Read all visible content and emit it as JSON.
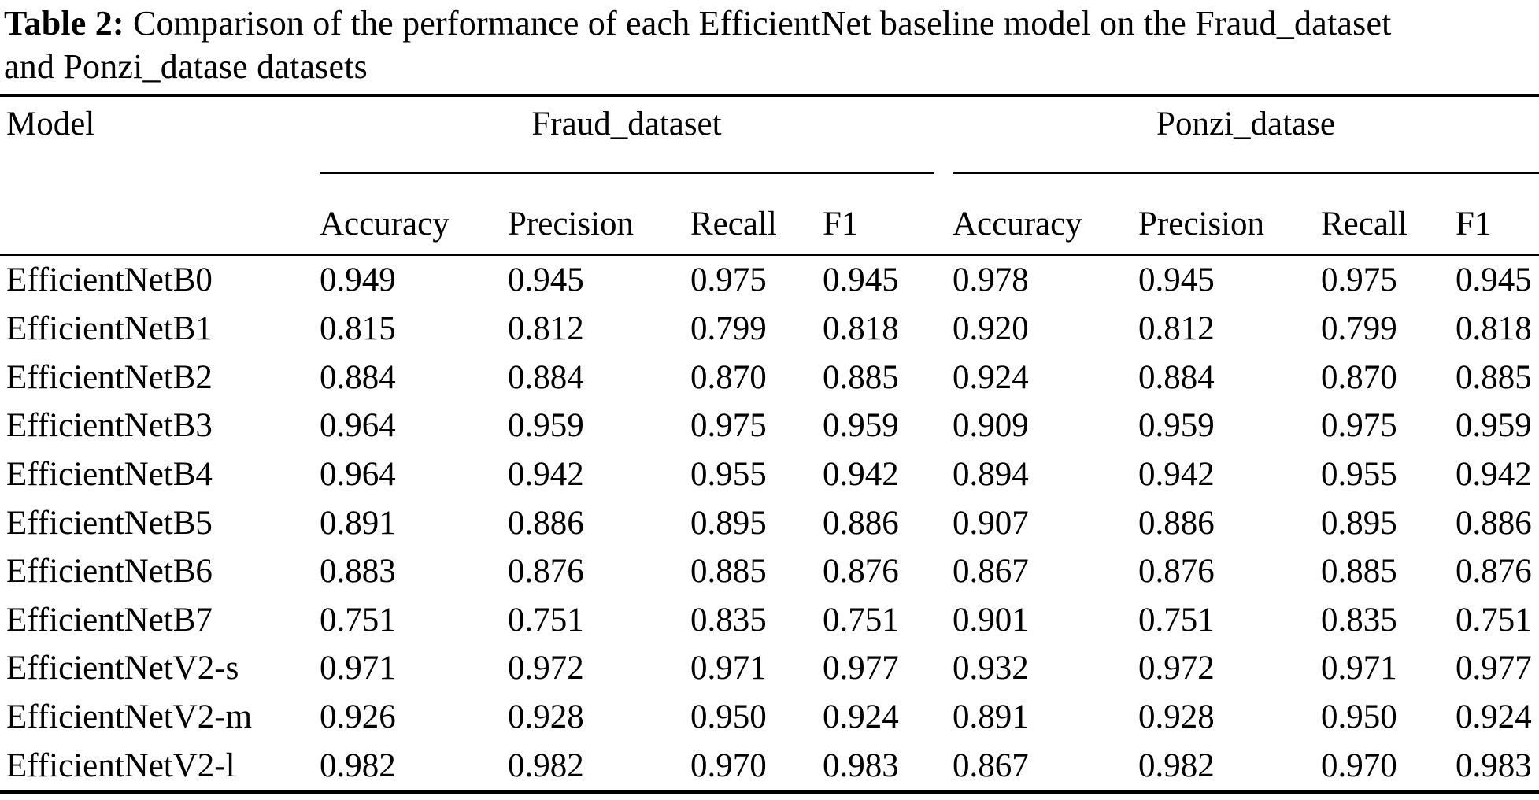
{
  "caption": {
    "label": "Table 2:",
    "line1": "Comparison of the performance of each EfficientNet baseline model on the Fraud_dataset",
    "line2": "and Ponzi_datase datasets"
  },
  "table": {
    "model_header": "Model",
    "groups": [
      {
        "label": "Fraud_dataset",
        "columns": [
          "Accuracy",
          "Precision",
          "Recall",
          "F1"
        ]
      },
      {
        "label": "Ponzi_datase",
        "columns": [
          "Accuracy",
          "Precision",
          "Recall",
          "F1"
        ]
      }
    ],
    "rows": [
      {
        "model": "EfficientNetB0",
        "fraud": [
          "0.949",
          "0.945",
          "0.975",
          "0.945"
        ],
        "ponzi": [
          "0.978",
          "0.945",
          "0.975",
          "0.945"
        ]
      },
      {
        "model": "EfficientNetB1",
        "fraud": [
          "0.815",
          "0.812",
          "0.799",
          "0.818"
        ],
        "ponzi": [
          "0.920",
          "0.812",
          "0.799",
          "0.818"
        ]
      },
      {
        "model": "EfficientNetB2",
        "fraud": [
          "0.884",
          "0.884",
          "0.870",
          "0.885"
        ],
        "ponzi": [
          "0.924",
          "0.884",
          "0.870",
          "0.885"
        ]
      },
      {
        "model": "EfficientNetB3",
        "fraud": [
          "0.964",
          "0.959",
          "0.975",
          "0.959"
        ],
        "ponzi": [
          "0.909",
          "0.959",
          "0.975",
          "0.959"
        ]
      },
      {
        "model": "EfficientNetB4",
        "fraud": [
          "0.964",
          "0.942",
          "0.955",
          "0.942"
        ],
        "ponzi": [
          "0.894",
          "0.942",
          "0.955",
          "0.942"
        ]
      },
      {
        "model": "EfficientNetB5",
        "fraud": [
          "0.891",
          "0.886",
          "0.895",
          "0.886"
        ],
        "ponzi": [
          "0.907",
          "0.886",
          "0.895",
          "0.886"
        ]
      },
      {
        "model": "EfficientNetB6",
        "fraud": [
          "0.883",
          "0.876",
          "0.885",
          "0.876"
        ],
        "ponzi": [
          "0.867",
          "0.876",
          "0.885",
          "0.876"
        ]
      },
      {
        "model": "EfficientNetB7",
        "fraud": [
          "0.751",
          "0.751",
          "0.835",
          "0.751"
        ],
        "ponzi": [
          "0.901",
          "0.751",
          "0.835",
          "0.751"
        ]
      },
      {
        "model": "EfficientNetV2-s",
        "fraud": [
          "0.971",
          "0.972",
          "0.971",
          "0.977"
        ],
        "ponzi": [
          "0.932",
          "0.972",
          "0.971",
          "0.977"
        ]
      },
      {
        "model": "EfficientNetV2-m",
        "fraud": [
          "0.926",
          "0.928",
          "0.950",
          "0.924"
        ],
        "ponzi": [
          "0.891",
          "0.928",
          "0.950",
          "0.924"
        ]
      },
      {
        "model": "EfficientNetV2-l",
        "fraud": [
          "0.982",
          "0.982",
          "0.970",
          "0.983"
        ],
        "ponzi": [
          "0.867",
          "0.982",
          "0.970",
          "0.983"
        ]
      }
    ]
  },
  "colors": {
    "text": "#000000",
    "background": "#ffffff",
    "rule": "#000000"
  }
}
